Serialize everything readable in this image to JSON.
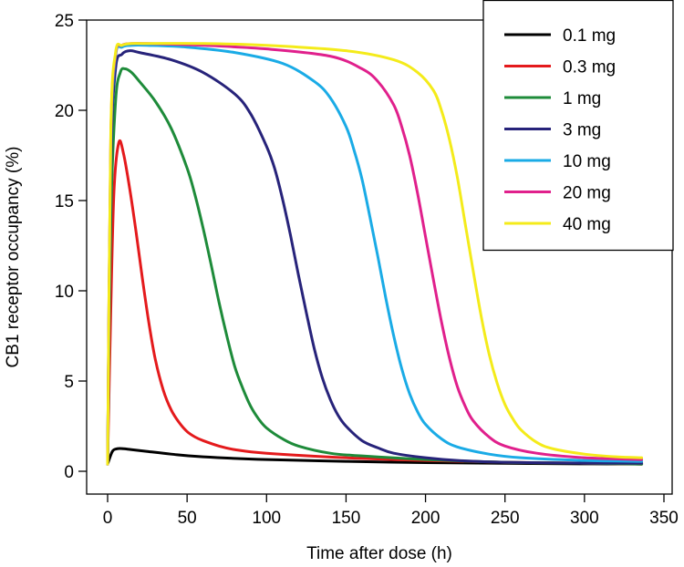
{
  "chart_data": {
    "type": "line",
    "xlabel": "Time after dose (h)",
    "ylabel": "CB1 receptor occupancy (%)",
    "xlim": [
      0,
      350
    ],
    "ylim": [
      0,
      25
    ],
    "xticks": [
      "0",
      "50",
      "100",
      "150",
      "200",
      "250",
      "300",
      "350"
    ],
    "yticks": [
      "0",
      "5",
      "10",
      "15",
      "20",
      "25"
    ],
    "grid": false,
    "legend_position": "top-right",
    "series": [
      {
        "name": "0.1 mg",
        "color": "#000000",
        "x": [
          0,
          3,
          6,
          10,
          15,
          25,
          40,
          60,
          100,
          150,
          200,
          250,
          300,
          336
        ],
        "y": [
          0.4,
          1.1,
          1.25,
          1.25,
          1.2,
          1.1,
          0.95,
          0.8,
          0.65,
          0.55,
          0.48,
          0.44,
          0.41,
          0.4
        ]
      },
      {
        "name": "0.3 mg",
        "color": "#e41a1c",
        "x": [
          0,
          2,
          4,
          7,
          10,
          14,
          18,
          22,
          26,
          30,
          35,
          40,
          45,
          50,
          55,
          60,
          70,
          80,
          100,
          150,
          200,
          250,
          300,
          336
        ],
        "y": [
          0.4,
          9,
          15.5,
          18.2,
          17.6,
          15.6,
          13.2,
          10.6,
          8.2,
          6.2,
          4.5,
          3.4,
          2.7,
          2.2,
          1.9,
          1.7,
          1.4,
          1.2,
          1.0,
          0.75,
          0.6,
          0.5,
          0.45,
          0.4
        ]
      },
      {
        "name": "1 mg",
        "color": "#1e8b3a",
        "x": [
          0,
          2,
          5,
          8,
          11,
          15,
          20,
          30,
          40,
          50,
          55,
          60,
          65,
          70,
          75,
          80,
          85,
          90,
          95,
          100,
          110,
          120,
          140,
          160,
          200,
          250,
          300,
          336
        ],
        "y": [
          0.4,
          14,
          20.5,
          22.1,
          22.3,
          22.1,
          21.6,
          20.5,
          19.0,
          16.8,
          15.3,
          13.5,
          11.5,
          9.4,
          7.5,
          5.8,
          4.6,
          3.6,
          2.9,
          2.4,
          1.8,
          1.4,
          1.0,
          0.85,
          0.65,
          0.5,
          0.45,
          0.4
        ]
      },
      {
        "name": "3 mg",
        "color": "#27237a",
        "x": [
          0,
          2,
          5,
          9,
          14,
          20,
          40,
          60,
          80,
          90,
          100,
          105,
          110,
          115,
          120,
          125,
          130,
          135,
          140,
          145,
          150,
          160,
          170,
          180,
          200,
          220,
          250,
          300,
          336
        ],
        "y": [
          0.4,
          17,
          22.3,
          23.1,
          23.3,
          23.2,
          22.8,
          22.1,
          20.9,
          19.8,
          18.0,
          16.8,
          15.1,
          13.1,
          10.9,
          8.8,
          6.8,
          5.2,
          4.0,
          3.1,
          2.5,
          1.7,
          1.3,
          1.0,
          0.75,
          0.6,
          0.5,
          0.45,
          0.45
        ]
      },
      {
        "name": "10 mg",
        "color": "#1aabe6",
        "x": [
          0,
          2,
          5,
          9,
          15,
          25,
          50,
          80,
          110,
          130,
          140,
          150,
          155,
          160,
          165,
          170,
          175,
          180,
          185,
          190,
          195,
          200,
          210,
          220,
          240,
          260,
          300,
          336
        ],
        "y": [
          0.4,
          18,
          23.0,
          23.5,
          23.6,
          23.6,
          23.5,
          23.2,
          22.6,
          21.6,
          20.7,
          19.1,
          17.8,
          16.2,
          14.1,
          11.9,
          9.6,
          7.5,
          5.7,
          4.3,
          3.3,
          2.6,
          1.8,
          1.35,
          0.95,
          0.75,
          0.6,
          0.55
        ]
      },
      {
        "name": "20 mg",
        "color": "#e0208c",
        "x": [
          0,
          2,
          5,
          9,
          15,
          25,
          60,
          100,
          140,
          160,
          170,
          180,
          185,
          190,
          195,
          200,
          205,
          210,
          215,
          220,
          225,
          230,
          240,
          250,
          270,
          300,
          336
        ],
        "y": [
          0.4,
          18.5,
          23.1,
          23.6,
          23.7,
          23.7,
          23.6,
          23.4,
          23.0,
          22.3,
          21.6,
          20.3,
          19.1,
          17.5,
          15.4,
          13.0,
          10.6,
          8.3,
          6.3,
          4.7,
          3.6,
          2.8,
          1.9,
          1.4,
          1.0,
          0.75,
          0.65
        ]
      },
      {
        "name": "40 mg",
        "color": "#f4eb1a",
        "x": [
          0,
          2,
          5,
          9,
          15,
          25,
          60,
          100,
          150,
          180,
          195,
          205,
          210,
          215,
          220,
          225,
          230,
          235,
          240,
          245,
          250,
          255,
          260,
          270,
          280,
          300,
          320,
          336
        ],
        "y": [
          0.4,
          18.8,
          23.2,
          23.6,
          23.7,
          23.7,
          23.7,
          23.6,
          23.3,
          22.8,
          22.1,
          21.1,
          20.0,
          18.4,
          16.3,
          13.7,
          11.1,
          8.6,
          6.5,
          4.9,
          3.7,
          2.9,
          2.3,
          1.6,
          1.25,
          0.95,
          0.8,
          0.75
        ]
      }
    ]
  }
}
